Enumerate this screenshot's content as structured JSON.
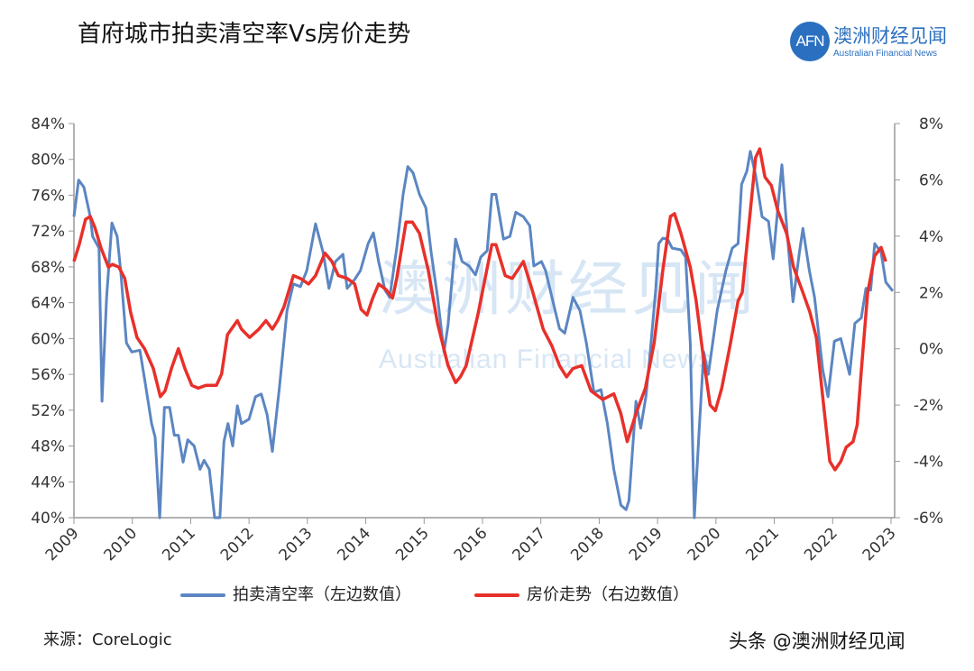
{
  "header": {
    "title": "首府城市拍卖清空率Vs房价走势",
    "logo_mark": "AFN",
    "logo_cn": "澳洲财经见闻",
    "logo_en": "Australian Financial News"
  },
  "watermark": {
    "cn": "澳洲财经见闻",
    "en": "Australian Financial News"
  },
  "footer": {
    "source": "来源：CoreLogic",
    "credit": "头条 @澳洲财经见闻"
  },
  "colors": {
    "clearance": "#5b86c2",
    "price": "#e8302a"
  },
  "chart_data": {
    "type": "line",
    "title": "首府城市拍卖清空率Vs房价走势",
    "x_ticks": [
      "2009",
      "2010",
      "2011",
      "2012",
      "2013",
      "2014",
      "2015",
      "2016",
      "2017",
      "2018",
      "2019",
      "2020",
      "2021",
      "2022",
      "2023"
    ],
    "xlim": [
      2009,
      2023.2
    ],
    "left_axis": {
      "ticks": [
        "84%",
        "80%",
        "76%",
        "72%",
        "68%",
        "64%",
        "60%",
        "56%",
        "52%",
        "48%",
        "44%",
        "40%"
      ],
      "ylim": [
        40,
        84
      ]
    },
    "right_axis": {
      "ticks": [
        "8%",
        "6%",
        "4%",
        "2%",
        "0%",
        "-2%",
        "-4%",
        "-6%"
      ],
      "ylim": [
        -6,
        8
      ]
    },
    "legend_placement": "bottom",
    "series": [
      {
        "name": "拍卖清空率（左边数值）",
        "axis": "left",
        "points": [
          [
            2009.0,
            73.6
          ],
          [
            2009.08,
            77.7
          ],
          [
            2009.17,
            76.9
          ],
          [
            2009.28,
            73.6
          ],
          [
            2009.32,
            71.4
          ],
          [
            2009.43,
            70.1
          ],
          [
            2009.48,
            53.0
          ],
          [
            2009.56,
            64.6
          ],
          [
            2009.65,
            72.9
          ],
          [
            2009.74,
            71.4
          ],
          [
            2009.8,
            67.6
          ],
          [
            2009.9,
            59.5
          ],
          [
            2009.99,
            58.5
          ],
          [
            2010.13,
            58.7
          ],
          [
            2010.21,
            55.5
          ],
          [
            2010.33,
            50.5
          ],
          [
            2010.39,
            49.0
          ],
          [
            2010.47,
            40
          ],
          [
            2010.55,
            52.3
          ],
          [
            2010.64,
            52.3
          ],
          [
            2010.72,
            49.2
          ],
          [
            2010.79,
            49.2
          ],
          [
            2010.87,
            46.2
          ],
          [
            2010.95,
            48.7
          ],
          [
            2011.06,
            48.0
          ],
          [
            2011.16,
            45.4
          ],
          [
            2011.23,
            46.4
          ],
          [
            2011.32,
            45.4
          ],
          [
            2011.41,
            40
          ],
          [
            2011.5,
            40
          ],
          [
            2011.57,
            48.5
          ],
          [
            2011.64,
            50.5
          ],
          [
            2011.72,
            48.0
          ],
          [
            2011.8,
            52.5
          ],
          [
            2011.87,
            50.5
          ],
          [
            2012.0,
            51.0
          ],
          [
            2012.11,
            53.5
          ],
          [
            2012.21,
            53.8
          ],
          [
            2012.31,
            51.5
          ],
          [
            2012.4,
            47.4
          ],
          [
            2012.52,
            54.5
          ],
          [
            2012.65,
            63.1
          ],
          [
            2012.76,
            66.1
          ],
          [
            2012.88,
            65.8
          ],
          [
            2012.99,
            67.6
          ],
          [
            2013.14,
            72.8
          ],
          [
            2013.27,
            69.6
          ],
          [
            2013.37,
            65.6
          ],
          [
            2013.48,
            68.6
          ],
          [
            2013.61,
            69.4
          ],
          [
            2013.68,
            65.6
          ],
          [
            2013.81,
            66.6
          ],
          [
            2013.91,
            67.6
          ],
          [
            2014.04,
            70.6
          ],
          [
            2014.13,
            71.8
          ],
          [
            2014.22,
            68.6
          ],
          [
            2014.33,
            65.4
          ],
          [
            2014.41,
            64.6
          ],
          [
            2014.53,
            70.1
          ],
          [
            2014.64,
            76.1
          ],
          [
            2014.72,
            79.2
          ],
          [
            2014.81,
            78.5
          ],
          [
            2014.92,
            76.1
          ],
          [
            2015.03,
            74.6
          ],
          [
            2015.12,
            69.6
          ],
          [
            2015.23,
            64.6
          ],
          [
            2015.34,
            58.5
          ],
          [
            2015.41,
            61.5
          ],
          [
            2015.54,
            71.1
          ],
          [
            2015.65,
            68.6
          ],
          [
            2015.77,
            68.1
          ],
          [
            2015.88,
            67.1
          ],
          [
            2015.97,
            69.1
          ],
          [
            2016.08,
            69.8
          ],
          [
            2016.16,
            76.1
          ],
          [
            2016.23,
            76.1
          ],
          [
            2016.36,
            71.1
          ],
          [
            2016.47,
            71.4
          ],
          [
            2016.57,
            74.1
          ],
          [
            2016.7,
            73.6
          ],
          [
            2016.81,
            72.6
          ],
          [
            2016.88,
            68.1
          ],
          [
            2017.01,
            68.6
          ],
          [
            2017.08,
            67.6
          ],
          [
            2017.19,
            64.6
          ],
          [
            2017.32,
            61.1
          ],
          [
            2017.41,
            60.6
          ],
          [
            2017.55,
            64.6
          ],
          [
            2017.67,
            63.1
          ],
          [
            2017.78,
            59.5
          ],
          [
            2017.91,
            54.0
          ],
          [
            2018.03,
            54.3
          ],
          [
            2018.14,
            50.5
          ],
          [
            2018.25,
            45.4
          ],
          [
            2018.37,
            41.4
          ],
          [
            2018.46,
            40.9
          ],
          [
            2018.51,
            41.9
          ],
          [
            2018.63,
            53.0
          ],
          [
            2018.71,
            50.0
          ],
          [
            2018.8,
            53.5
          ],
          [
            2018.86,
            57.5
          ],
          [
            2018.97,
            65.6
          ],
          [
            2019.02,
            70.6
          ],
          [
            2019.09,
            71.2
          ],
          [
            2019.17,
            71.1
          ],
          [
            2019.25,
            70.1
          ],
          [
            2019.4,
            69.9
          ],
          [
            2019.48,
            69.1
          ],
          [
            2019.56,
            59.5
          ],
          [
            2019.63,
            40
          ],
          [
            2019.71,
            49.5
          ],
          [
            2019.79,
            58.5
          ],
          [
            2019.87,
            56.0
          ],
          [
            2020.02,
            63.1
          ],
          [
            2020.17,
            67.6
          ],
          [
            2020.28,
            70.1
          ],
          [
            2020.38,
            70.6
          ],
          [
            2020.44,
            77.2
          ],
          [
            2020.53,
            78.7
          ],
          [
            2020.59,
            80.9
          ],
          [
            2020.68,
            78.2
          ],
          [
            2020.79,
            73.6
          ],
          [
            2020.9,
            73.1
          ],
          [
            2020.98,
            68.9
          ],
          [
            2021.06,
            74.6
          ],
          [
            2021.13,
            79.4
          ],
          [
            2021.21,
            72.6
          ],
          [
            2021.32,
            64.1
          ],
          [
            2021.43,
            69.6
          ],
          [
            2021.49,
            72.3
          ],
          [
            2021.6,
            67.6
          ],
          [
            2021.69,
            64.6
          ],
          [
            2021.83,
            56.5
          ],
          [
            2021.92,
            53.5
          ],
          [
            2022.03,
            59.7
          ],
          [
            2022.14,
            60.0
          ],
          [
            2022.29,
            56.0
          ],
          [
            2022.38,
            61.7
          ],
          [
            2022.49,
            62.3
          ],
          [
            2022.57,
            65.6
          ],
          [
            2022.65,
            65.4
          ],
          [
            2022.72,
            70.6
          ],
          [
            2022.83,
            69.6
          ],
          [
            2022.91,
            66.3
          ],
          [
            2023.03,
            65.3
          ]
        ]
      },
      {
        "name": "房价走势（右边数值）",
        "axis": "right",
        "points": [
          [
            2009.0,
            3.1
          ],
          [
            2009.09,
            3.7
          ],
          [
            2009.2,
            4.6
          ],
          [
            2009.28,
            4.7
          ],
          [
            2009.36,
            4.3
          ],
          [
            2009.46,
            3.6
          ],
          [
            2009.59,
            2.9
          ],
          [
            2009.66,
            3.0
          ],
          [
            2009.77,
            2.9
          ],
          [
            2009.87,
            2.5
          ],
          [
            2009.97,
            1.3
          ],
          [
            2010.08,
            0.4
          ],
          [
            2010.21,
            0.0
          ],
          [
            2010.36,
            -0.7
          ],
          [
            2010.48,
            -1.7
          ],
          [
            2010.56,
            -1.5
          ],
          [
            2010.67,
            -0.7
          ],
          [
            2010.79,
            0.0
          ],
          [
            2010.9,
            -0.7
          ],
          [
            2011.02,
            -1.3
          ],
          [
            2011.13,
            -1.4
          ],
          [
            2011.26,
            -1.3
          ],
          [
            2011.44,
            -1.3
          ],
          [
            2011.53,
            -0.9
          ],
          [
            2011.63,
            0.5
          ],
          [
            2011.8,
            1.0
          ],
          [
            2011.87,
            0.7
          ],
          [
            2012.01,
            0.4
          ],
          [
            2012.17,
            0.7
          ],
          [
            2012.29,
            1.0
          ],
          [
            2012.4,
            0.7
          ],
          [
            2012.49,
            1.0
          ],
          [
            2012.6,
            1.5
          ],
          [
            2012.76,
            2.6
          ],
          [
            2012.88,
            2.5
          ],
          [
            2013.02,
            2.3
          ],
          [
            2013.14,
            2.6
          ],
          [
            2013.3,
            3.4
          ],
          [
            2013.42,
            3.1
          ],
          [
            2013.53,
            2.6
          ],
          [
            2013.68,
            2.5
          ],
          [
            2013.81,
            2.3
          ],
          [
            2013.92,
            1.4
          ],
          [
            2014.02,
            1.2
          ],
          [
            2014.12,
            1.8
          ],
          [
            2014.22,
            2.3
          ],
          [
            2014.35,
            2.1
          ],
          [
            2014.46,
            1.8
          ],
          [
            2014.53,
            2.5
          ],
          [
            2014.69,
            4.5
          ],
          [
            2014.8,
            4.5
          ],
          [
            2014.92,
            4.1
          ],
          [
            2015.07,
            2.8
          ],
          [
            2015.23,
            0.9
          ],
          [
            2015.41,
            -0.6
          ],
          [
            2015.54,
            -1.2
          ],
          [
            2015.62,
            -1.0
          ],
          [
            2015.72,
            -0.6
          ],
          [
            2015.92,
            1.2
          ],
          [
            2016.16,
            3.7
          ],
          [
            2016.23,
            3.7
          ],
          [
            2016.39,
            2.6
          ],
          [
            2016.51,
            2.5
          ],
          [
            2016.7,
            3.1
          ],
          [
            2016.85,
            2.1
          ],
          [
            2017.04,
            0.7
          ],
          [
            2017.19,
            0.1
          ],
          [
            2017.32,
            -0.6
          ],
          [
            2017.44,
            -1.0
          ],
          [
            2017.55,
            -0.7
          ],
          [
            2017.7,
            -0.6
          ],
          [
            2017.86,
            -1.5
          ],
          [
            2018.06,
            -1.8
          ],
          [
            2018.25,
            -1.6
          ],
          [
            2018.37,
            -2.3
          ],
          [
            2018.48,
            -3.3
          ],
          [
            2018.63,
            -2.3
          ],
          [
            2018.79,
            -1.4
          ],
          [
            2018.94,
            0.2
          ],
          [
            2019.09,
            2.8
          ],
          [
            2019.22,
            4.7
          ],
          [
            2019.29,
            4.8
          ],
          [
            2019.4,
            4.1
          ],
          [
            2019.56,
            2.9
          ],
          [
            2019.66,
            1.7
          ],
          [
            2019.79,
            -0.4
          ],
          [
            2019.9,
            -2.0
          ],
          [
            2019.99,
            -2.2
          ],
          [
            2020.1,
            -1.4
          ],
          [
            2020.25,
            0.2
          ],
          [
            2020.38,
            1.7
          ],
          [
            2020.45,
            2.0
          ],
          [
            2020.59,
            4.9
          ],
          [
            2020.68,
            6.8
          ],
          [
            2020.75,
            7.1
          ],
          [
            2020.84,
            6.1
          ],
          [
            2020.95,
            5.8
          ],
          [
            2021.06,
            4.9
          ],
          [
            2021.21,
            4.1
          ],
          [
            2021.33,
            2.9
          ],
          [
            2021.49,
            2.0
          ],
          [
            2021.61,
            1.3
          ],
          [
            2021.72,
            0.4
          ],
          [
            2021.84,
            -1.9
          ],
          [
            2021.95,
            -4.0
          ],
          [
            2022.04,
            -4.3
          ],
          [
            2022.14,
            -4.0
          ],
          [
            2022.23,
            -3.5
          ],
          [
            2022.35,
            -3.3
          ],
          [
            2022.42,
            -2.7
          ],
          [
            2022.49,
            -0.8
          ],
          [
            2022.6,
            2.0
          ],
          [
            2022.72,
            3.3
          ],
          [
            2022.83,
            3.6
          ],
          [
            2022.91,
            3.1
          ]
        ]
      }
    ]
  }
}
